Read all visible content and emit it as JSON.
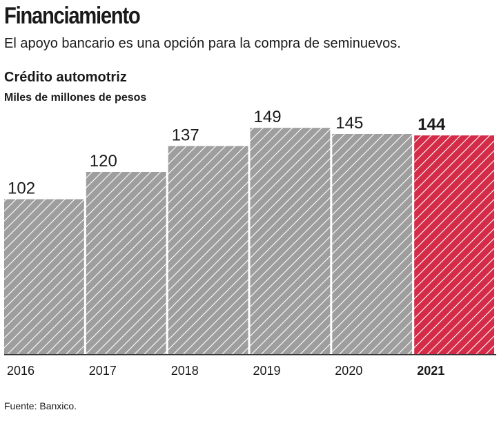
{
  "header": {
    "title": "Financiamiento",
    "subtitle": "El apoyo bancario es una opción para la compra de seminuevos."
  },
  "chart": {
    "title": "Crédito automotriz",
    "unit": "Miles de millones de pesos"
  },
  "footer": {
    "source": "Fuente: Banxico."
  },
  "colors": {
    "bar": "#9e9e9e",
    "highlight": "#d42b48",
    "stripe": "#ffffff",
    "axis": "#333333"
  },
  "chart_data": {
    "type": "bar",
    "title": "Crédito automotriz",
    "ylabel": "Miles de millones de pesos",
    "xlabel": "",
    "categories": [
      "2016",
      "2017",
      "2018",
      "2019",
      "2020",
      "2021"
    ],
    "values": [
      102,
      120,
      137,
      149,
      145,
      144
    ],
    "value_labels": [
      "102",
      "120",
      "137",
      "149",
      "145",
      "144"
    ],
    "highlight": "2021",
    "ylim": [
      0,
      180
    ],
    "grid": false,
    "legend": "none"
  }
}
